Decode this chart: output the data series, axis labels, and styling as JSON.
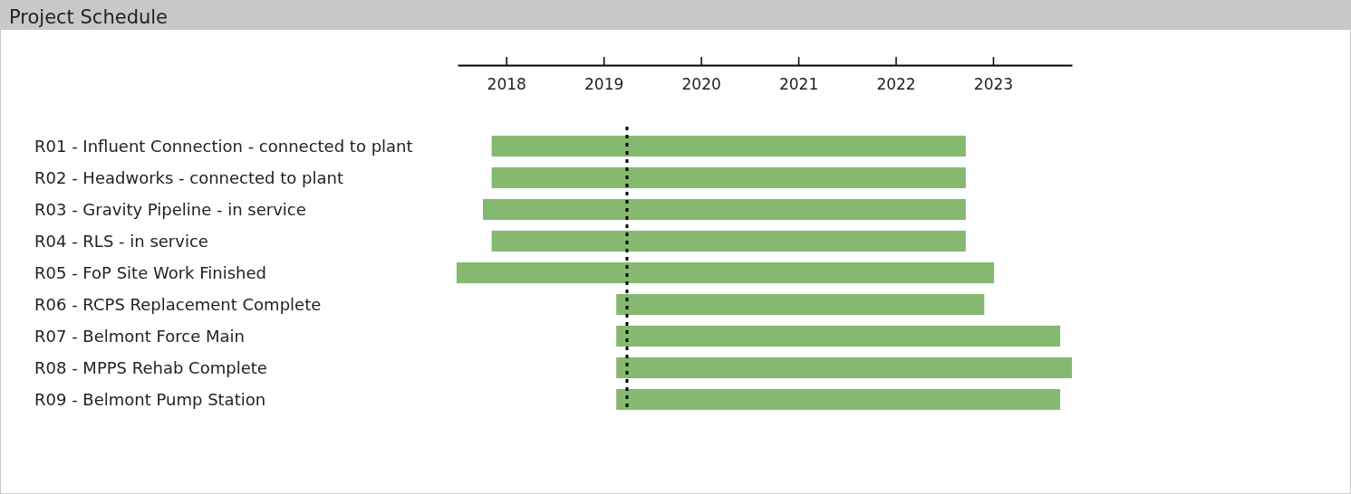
{
  "chart_data": {
    "type": "bar",
    "orientation": "horizontal",
    "title": "Project Schedule",
    "categories": [
      "R01 - Influent Connection - connected to plant",
      "R02 - Headworks - connected to plant",
      "R03 - Gravity Pipeline - in service",
      "R04 - RLS - in service",
      "R05 - FoP Site Work Finished",
      "R06 - RCPS Replacement Complete",
      "R07 - Belmont Force Main",
      "R08 - MPPS Rehab Complete",
      "R09 - Belmont Pump Station"
    ],
    "base": [
      2017.85,
      2017.85,
      2017.76,
      2017.85,
      2017.49,
      2019.13,
      2019.13,
      2019.13,
      2019.13
    ],
    "values": [
      4.87,
      4.87,
      4.96,
      4.87,
      5.52,
      3.78,
      4.56,
      4.68,
      4.56
    ],
    "color": "#86b970",
    "xlim": [
      2017.5,
      2023.81
    ],
    "xticks": [
      2018,
      2019,
      2020,
      2021,
      2022,
      2023
    ],
    "grid": false,
    "legend": false,
    "ref_lines": [
      {
        "axis": "x",
        "value": 2019.24,
        "color": "#000000",
        "line_style": "dotted"
      }
    ]
  }
}
